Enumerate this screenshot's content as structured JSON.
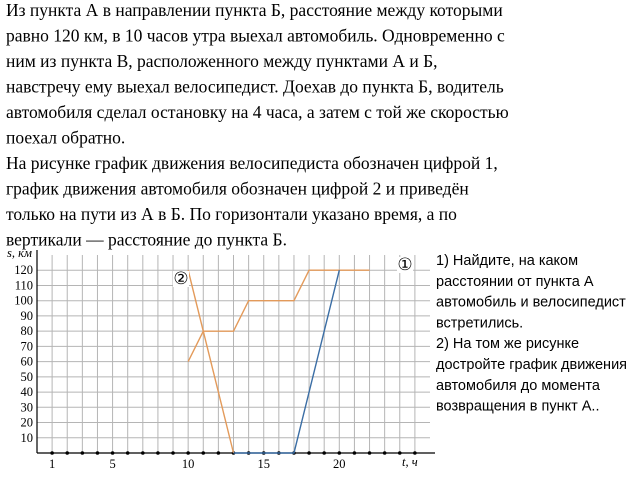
{
  "text": {
    "paragraph_1": [
      "Из пункта А в направлении пункта Б, расстояние между которыми",
      "равно 120 км, в 10 часов утра выехал автомобиль. Одновременно с",
      "ним из пункта В, расположенного между пунктами А и Б,",
      "навстречу ему выехал велосипедист. Доехав до пункта Б, водитель",
      "автомобиля сделал остановку на 4 часа, а затем с той же скоростью",
      "поехал обратно."
    ],
    "paragraph_2": [
      "На рисунке график движения велосипедиста обозначен цифрой 1,",
      "график движения автомобиля обозначен цифрой 2 и приведён",
      "только на пути из А в Б. По горизонтали указано время, а по",
      "вертикали — расстояние до пункта Б."
    ],
    "questions": [
      "1) Найдите, на каком",
      "расстоянии от пункта А",
      "автомобиль и велосипедист",
      "встретились.",
      "2) На том же рисунке",
      "достройте график движения",
      "автомобиля до момента",
      "возвращения в пункт А.."
    ]
  },
  "chart_data": {
    "type": "line",
    "x_label": "t, ч",
    "y_label": "s, км",
    "annotations": [
      "①",
      "②"
    ],
    "series": [
      {
        "color": "#e39a5a",
        "x": [
          10,
          13
        ],
        "values": [
          120,
          0
        ]
      },
      {
        "color": "#e39a5a",
        "x": [
          10,
          11,
          13,
          14,
          17,
          18,
          22
        ],
        "values": [
          60,
          80,
          80,
          100,
          100,
          120,
          120
        ]
      },
      {
        "color": "#3b6ea5",
        "x": [
          13,
          17,
          20
        ],
        "values": [
          0,
          0,
          120
        ]
      }
    ],
    "xlim": [
      0,
      26
    ],
    "ylim": [
      0,
      130
    ],
    "xticks": [
      1,
      5,
      10,
      15,
      20
    ],
    "xgrid": [
      1,
      2,
      3,
      4,
      5,
      6,
      7,
      8,
      9,
      10,
      11,
      12,
      13,
      14,
      15,
      16,
      17,
      18,
      19,
      20,
      21,
      22,
      23,
      24,
      25
    ],
    "yticks": [
      10,
      20,
      30,
      40,
      50,
      60,
      70,
      80,
      90,
      100,
      110,
      120
    ],
    "grid": true
  }
}
